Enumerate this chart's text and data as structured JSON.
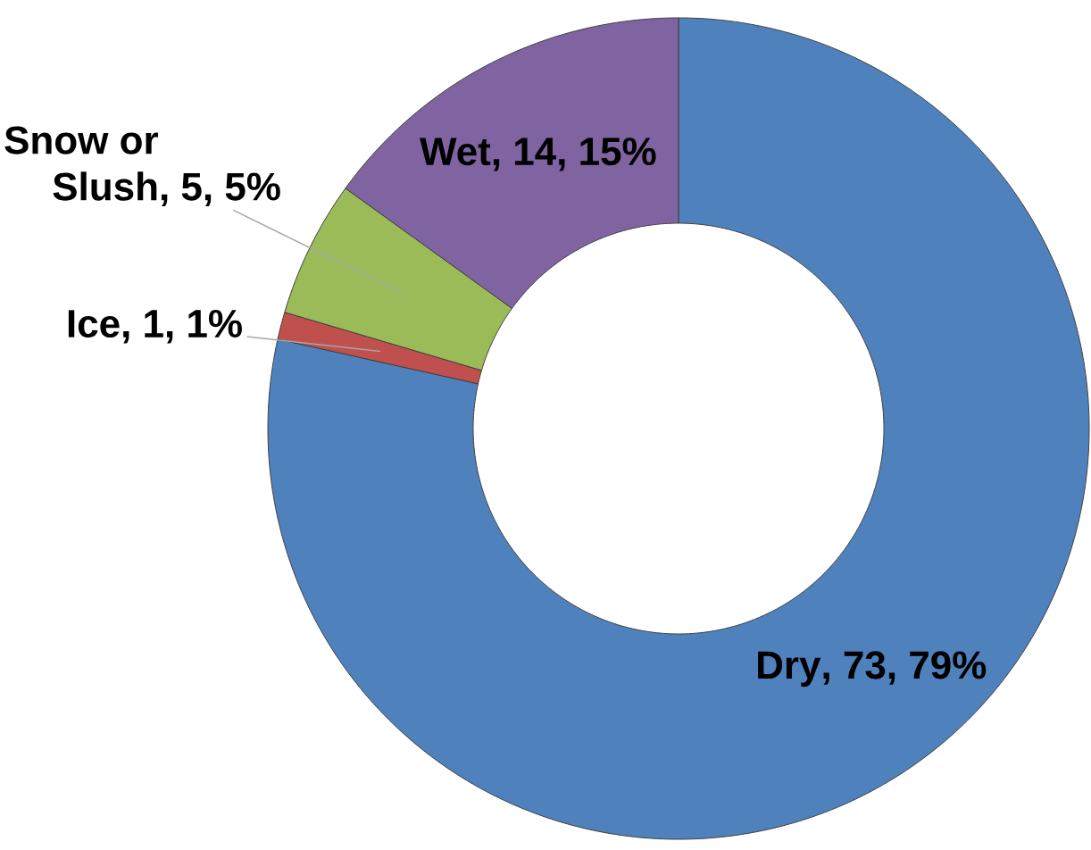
{
  "chart_data": {
    "type": "donut",
    "categories": [
      "Dry",
      "Ice",
      "Snow or Slush",
      "Wet"
    ],
    "values": [
      73,
      1,
      5,
      14
    ],
    "colors": [
      "#4f81bd",
      "#c0504d",
      "#9bbb59",
      "#8064a2"
    ],
    "value_labels": [
      ", 73, 79%",
      ", 1, 1%",
      ", 5, 5%",
      ", 14, 15%"
    ]
  }
}
